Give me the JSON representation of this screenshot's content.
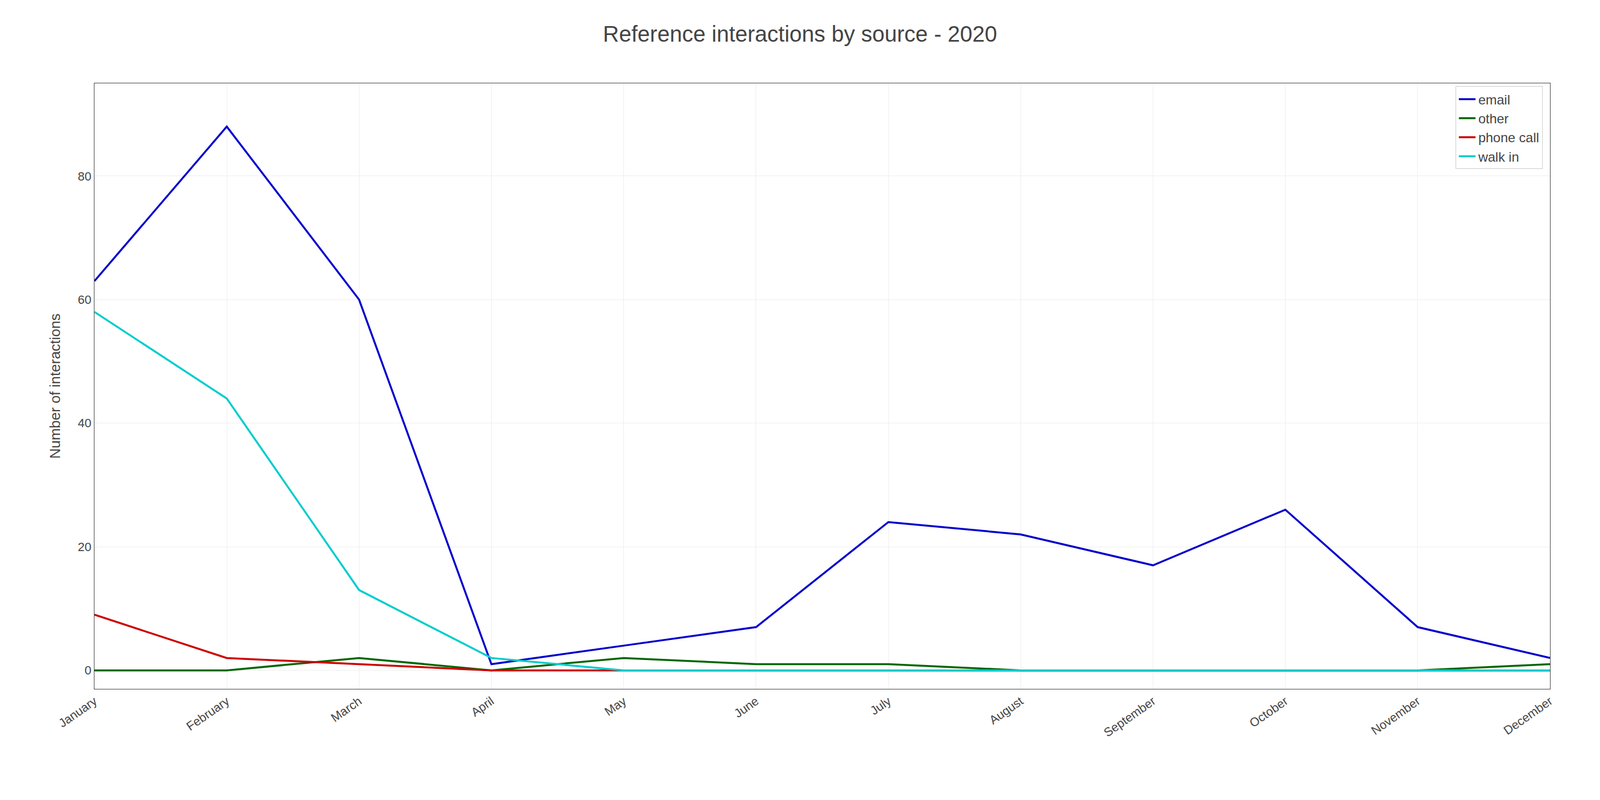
{
  "chart_data": {
    "type": "line",
    "title": "Reference interactions by source - 2020",
    "ylabel": "Number of interactions",
    "categories": [
      "January",
      "February",
      "March",
      "April",
      "May",
      "June",
      "July",
      "August",
      "September",
      "October",
      "November",
      "December"
    ],
    "series": [
      {
        "name": "email",
        "color": "#0000cc",
        "values": [
          63,
          88,
          60,
          1,
          4,
          7,
          24,
          22,
          17,
          26,
          7,
          2
        ]
      },
      {
        "name": "other",
        "color": "#006600",
        "values": [
          0,
          0,
          2,
          0,
          2,
          1,
          1,
          0,
          0,
          0,
          0,
          1
        ]
      },
      {
        "name": "phone call",
        "color": "#cc0000",
        "values": [
          9,
          2,
          1,
          0,
          0,
          0,
          0,
          0,
          0,
          0,
          0,
          0
        ]
      },
      {
        "name": "walk in",
        "color": "#00cccc",
        "values": [
          58,
          44,
          13,
          2,
          0,
          0,
          0,
          0,
          0,
          0,
          0,
          0
        ]
      }
    ],
    "ylim": [
      -3,
      95
    ],
    "yticks": [
      0,
      20,
      40,
      60,
      80
    ],
    "grid": true,
    "legend": "upper right"
  }
}
